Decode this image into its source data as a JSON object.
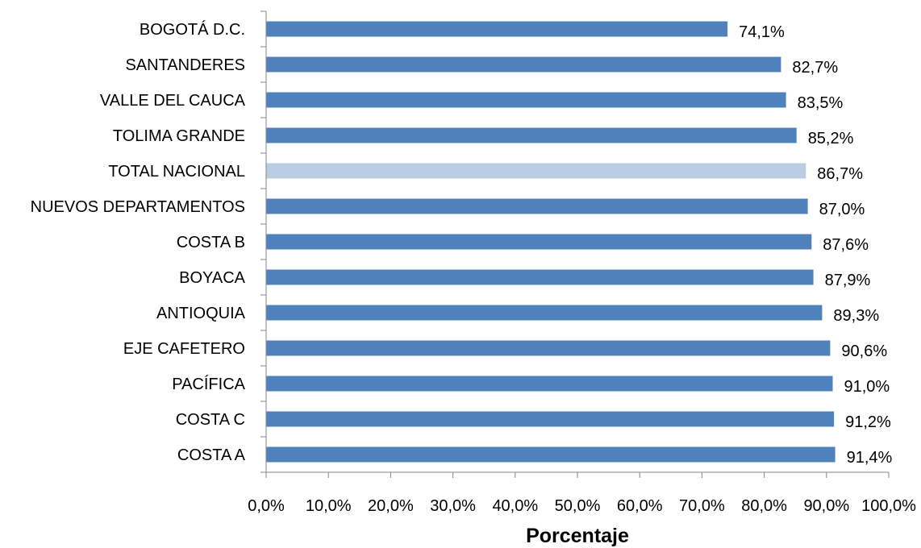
{
  "chart_data": {
    "type": "bar",
    "orientation": "horizontal",
    "title": "",
    "xlabel": "Porcentaje",
    "ylabel": "",
    "xlim": [
      0,
      100
    ],
    "categories": [
      "BOGOTÁ D.C.",
      "SANTANDERES",
      "VALLE DEL CAUCA",
      "TOLIMA GRANDE",
      "TOTAL NACIONAL",
      "NUEVOS DEPARTAMENTOS",
      "COSTA B",
      "BOYACA",
      "ANTIOQUIA",
      "EJE CAFETERO",
      "PACÍFICA",
      "COSTA C",
      "COSTA A"
    ],
    "values": [
      74.1,
      82.7,
      83.5,
      85.2,
      86.7,
      87.0,
      87.6,
      87.9,
      89.3,
      90.6,
      91.0,
      91.2,
      91.4
    ],
    "value_labels": [
      "74,1%",
      "82,7%",
      "83,5%",
      "85,2%",
      "86,7%",
      "87,0%",
      "87,6%",
      "87,9%",
      "89,3%",
      "90,6%",
      "91,0%",
      "91,2%",
      "91,4%"
    ],
    "x_ticks": [
      "0,0%",
      "10,0%",
      "20,0%",
      "30,0%",
      "40,0%",
      "50,0%",
      "60,0%",
      "70,0%",
      "80,0%",
      "90,0%",
      "100,0%"
    ],
    "highlight_category": "TOTAL NACIONAL",
    "colors": {
      "bar": "#4f81bd",
      "highlight": "#b9cde5",
      "axis": "#868686"
    },
    "grid": false,
    "legend": "none"
  }
}
